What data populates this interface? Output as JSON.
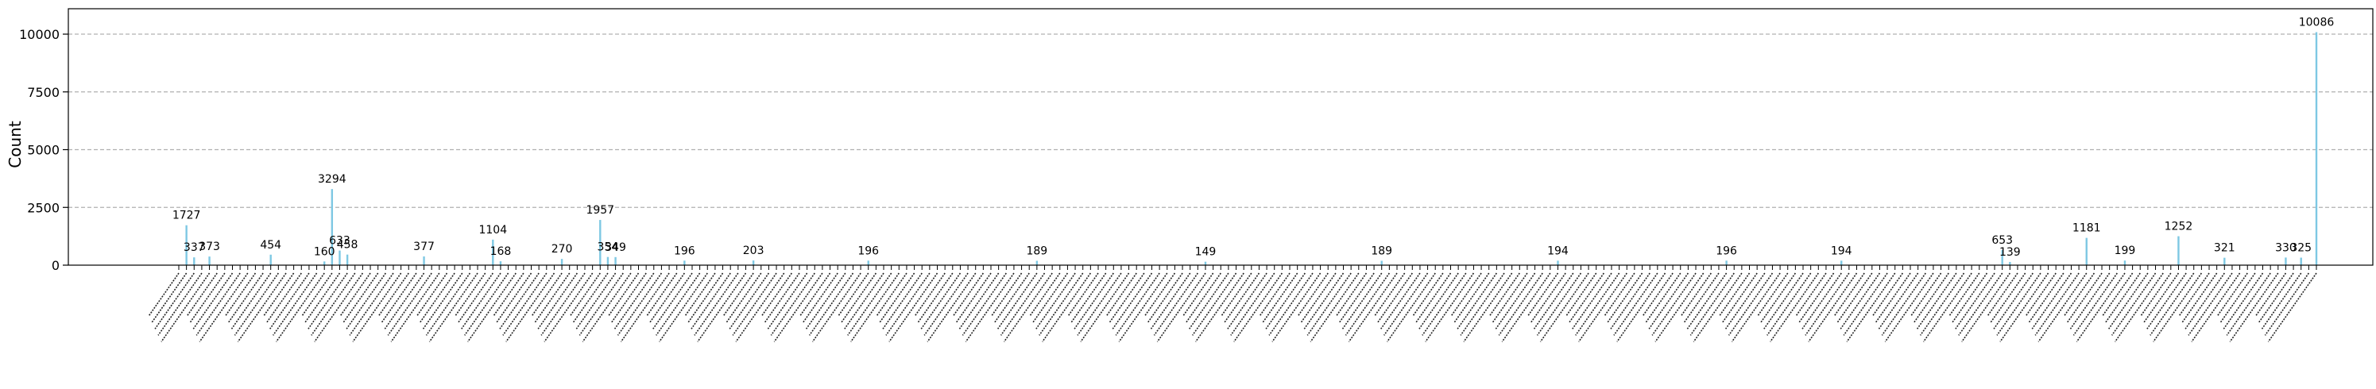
{
  "chart_data": {
    "type": "bar",
    "title": "",
    "xlabel": "",
    "ylabel": "Count",
    "ylim": [
      0,
      11100
    ],
    "yticks": [
      0,
      2500,
      5000,
      7500,
      10000
    ],
    "grid": "y-dashed",
    "bar_color": "#7ec8e3",
    "n_categories": 280,
    "labeled_bars": [
      {
        "index": 1,
        "value": 1727,
        "label": "1727"
      },
      {
        "index": 2,
        "value": 337,
        "label": "337"
      },
      {
        "index": 4,
        "value": 373,
        "label": "373"
      },
      {
        "index": 12,
        "value": 454,
        "label": "454"
      },
      {
        "index": 19,
        "value": 160,
        "label": "160"
      },
      {
        "index": 20,
        "value": 3294,
        "label": "3294"
      },
      {
        "index": 21,
        "value": 633,
        "label": "633"
      },
      {
        "index": 22,
        "value": 458,
        "label": "458"
      },
      {
        "index": 32,
        "value": 377,
        "label": "377"
      },
      {
        "index": 41,
        "value": 1104,
        "label": "1104"
      },
      {
        "index": 42,
        "value": 168,
        "label": "168"
      },
      {
        "index": 50,
        "value": 270,
        "label": "270"
      },
      {
        "index": 55,
        "value": 1957,
        "label": "1957"
      },
      {
        "index": 56,
        "value": 354,
        "label": "354"
      },
      {
        "index": 57,
        "value": 349,
        "label": "349"
      },
      {
        "index": 66,
        "value": 196,
        "label": "196"
      },
      {
        "index": 75,
        "value": 203,
        "label": "203"
      },
      {
        "index": 90,
        "value": 196,
        "label": "196"
      },
      {
        "index": 112,
        "value": 189,
        "label": "189"
      },
      {
        "index": 134,
        "value": 149,
        "label": "149"
      },
      {
        "index": 157,
        "value": 189,
        "label": "189"
      },
      {
        "index": 180,
        "value": 194,
        "label": "194"
      },
      {
        "index": 202,
        "value": 196,
        "label": "196"
      },
      {
        "index": 217,
        "value": 194,
        "label": "194"
      },
      {
        "index": 238,
        "value": 653,
        "label": "653"
      },
      {
        "index": 239,
        "value": 139,
        "label": "139"
      },
      {
        "index": 249,
        "value": 1181,
        "label": "1181"
      },
      {
        "index": 254,
        "value": 199,
        "label": "199"
      },
      {
        "index": 261,
        "value": 1252,
        "label": "1252"
      },
      {
        "index": 267,
        "value": 321,
        "label": "321"
      },
      {
        "index": 275,
        "value": 330,
        "label": "330"
      },
      {
        "index": 277,
        "value": 325,
        "label": "325"
      },
      {
        "index": 279,
        "value": 10086,
        "label": "10086"
      }
    ]
  }
}
